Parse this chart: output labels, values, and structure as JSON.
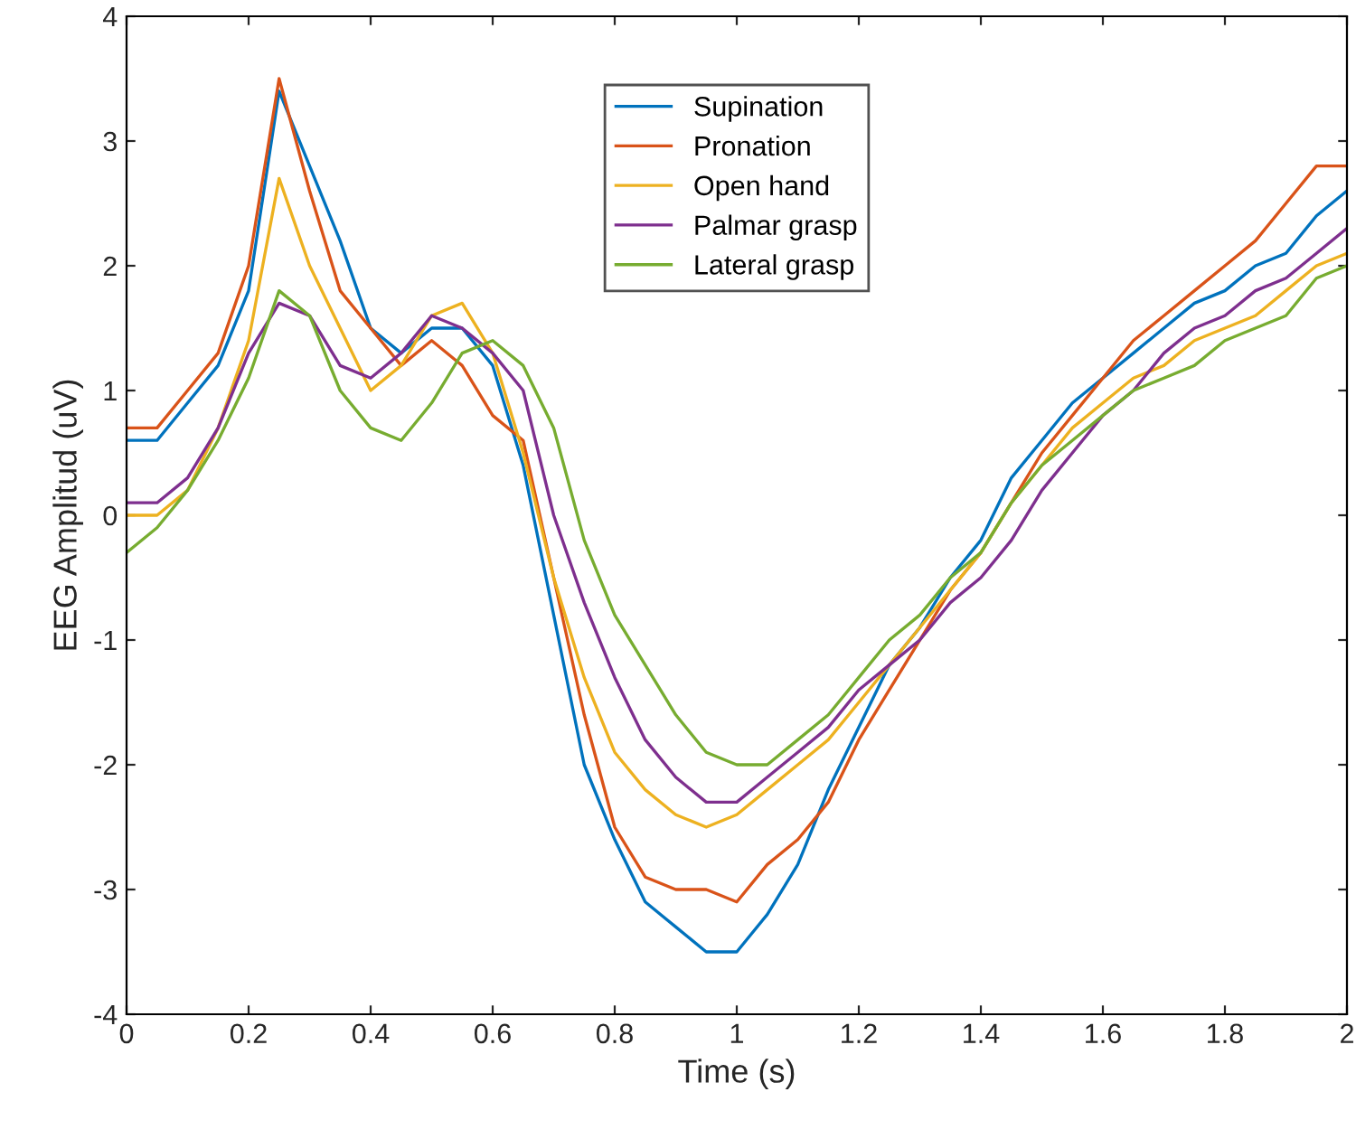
{
  "chart_data": {
    "type": "line",
    "xlabel": "Time (s)",
    "ylabel": "EEG Amplitud (uV)",
    "xlim": [
      0,
      2
    ],
    "ylim": [
      -4,
      4
    ],
    "xticks": [
      0,
      0.2,
      0.4,
      0.6,
      0.8,
      1,
      1.2,
      1.4,
      1.6,
      1.8,
      2
    ],
    "yticks": [
      -4,
      -3,
      -2,
      -1,
      0,
      1,
      2,
      3,
      4
    ],
    "grid": false,
    "legend": "top",
    "marker": "none",
    "line_style": "solid",
    "x": [
      0,
      0.05,
      0.1,
      0.15,
      0.2,
      0.25,
      0.3,
      0.35,
      0.4,
      0.45,
      0.5,
      0.55,
      0.6,
      0.65,
      0.7,
      0.75,
      0.8,
      0.85,
      0.9,
      0.95,
      1,
      1.05,
      1.1,
      1.15,
      1.2,
      1.25,
      1.3,
      1.35,
      1.4,
      1.45,
      1.5,
      1.55,
      1.6,
      1.65,
      1.7,
      1.75,
      1.8,
      1.85,
      1.9,
      1.95,
      2
    ],
    "series": [
      {
        "name": "Supination",
        "color": "#0072bd",
        "values": [
          0.6,
          0.6,
          0.9,
          1.2,
          1.8,
          3.4,
          2.8,
          2.2,
          1.5,
          1.3,
          1.5,
          1.5,
          1.2,
          0.4,
          -0.8,
          -2.0,
          -2.6,
          -3.1,
          -3.3,
          -3.5,
          -3.5,
          -3.2,
          -2.8,
          -2.2,
          -1.7,
          -1.2,
          -0.9,
          -0.5,
          -0.2,
          0.3,
          0.6,
          0.9,
          1.1,
          1.3,
          1.5,
          1.7,
          1.8,
          2.0,
          2.1,
          2.4,
          2.6
        ]
      },
      {
        "name": "Pronation",
        "color": "#d95319",
        "values": [
          0.7,
          0.7,
          1.0,
          1.3,
          2.0,
          3.5,
          2.6,
          1.8,
          1.5,
          1.2,
          1.4,
          1.2,
          0.8,
          0.6,
          -0.5,
          -1.6,
          -2.5,
          -2.9,
          -3.0,
          -3.0,
          -3.1,
          -2.8,
          -2.6,
          -2.3,
          -1.8,
          -1.4,
          -1.0,
          -0.6,
          -0.3,
          0.1,
          0.5,
          0.8,
          1.1,
          1.4,
          1.6,
          1.8,
          2.0,
          2.2,
          2.5,
          2.8,
          2.8
        ]
      },
      {
        "name": "Open hand",
        "color": "#edb120",
        "values": [
          0.0,
          0.0,
          0.2,
          0.7,
          1.4,
          2.7,
          2.0,
          1.5,
          1.0,
          1.2,
          1.6,
          1.7,
          1.3,
          0.5,
          -0.5,
          -1.3,
          -1.9,
          -2.2,
          -2.4,
          -2.5,
          -2.4,
          -2.2,
          -2.0,
          -1.8,
          -1.5,
          -1.2,
          -0.9,
          -0.6,
          -0.3,
          0.1,
          0.4,
          0.7,
          0.9,
          1.1,
          1.2,
          1.4,
          1.5,
          1.6,
          1.8,
          2.0,
          2.1
        ]
      },
      {
        "name": "Palmar grasp",
        "color": "#7e2f8e",
        "values": [
          0.1,
          0.1,
          0.3,
          0.7,
          1.3,
          1.7,
          1.6,
          1.2,
          1.1,
          1.3,
          1.6,
          1.5,
          1.3,
          1.0,
          0.0,
          -0.7,
          -1.3,
          -1.8,
          -2.1,
          -2.3,
          -2.3,
          -2.1,
          -1.9,
          -1.7,
          -1.4,
          -1.2,
          -1.0,
          -0.7,
          -0.5,
          -0.2,
          0.2,
          0.5,
          0.8,
          1.0,
          1.3,
          1.5,
          1.6,
          1.8,
          1.9,
          2.1,
          2.3
        ]
      },
      {
        "name": "Lateral grasp",
        "color": "#77ac30",
        "values": [
          -0.3,
          -0.1,
          0.2,
          0.6,
          1.1,
          1.8,
          1.6,
          1.0,
          0.7,
          0.6,
          0.9,
          1.3,
          1.4,
          1.2,
          0.7,
          -0.2,
          -0.8,
          -1.2,
          -1.6,
          -1.9,
          -2.0,
          -2.0,
          -1.8,
          -1.6,
          -1.3,
          -1.0,
          -0.8,
          -0.5,
          -0.3,
          0.1,
          0.4,
          0.6,
          0.8,
          1.0,
          1.1,
          1.2,
          1.4,
          1.5,
          1.6,
          1.9,
          2.0
        ]
      }
    ]
  }
}
